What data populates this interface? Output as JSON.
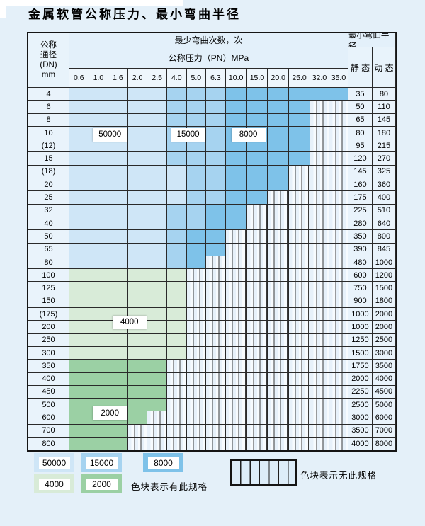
{
  "title": "金属软管公称压力、最小弯曲半径",
  "table": {
    "header": {
      "dn_lines": [
        "公称",
        "通径",
        "(DN)",
        "mm"
      ],
      "bend_times": "最少弯曲次数，次",
      "pressure": "公称压力（PN）MPa",
      "radius": "最小弯曲半径",
      "static": "静 态",
      "dynamic": "动 态",
      "pn_columns": [
        "0.6",
        "1.0",
        "1.6",
        "2.0",
        "2.5",
        "4.0",
        "5.0",
        "6.3",
        "10.0",
        "15.0",
        "20.0",
        "25.0",
        "32.0",
        "35.0"
      ]
    },
    "rows": [
      {
        "dn": "4",
        "max_pn": "35.0",
        "shade_medium_from": "4.0",
        "shade_dark_from": "10.0",
        "static": "35",
        "dynamic": "80"
      },
      {
        "dn": "6",
        "max_pn": "25.0",
        "shade_medium_from": "4.0",
        "shade_dark_from": "10.0",
        "static": "50",
        "dynamic": "110"
      },
      {
        "dn": "8",
        "max_pn": "25.0",
        "shade_medium_from": "4.0",
        "shade_dark_from": "10.0",
        "static": "65",
        "dynamic": "145"
      },
      {
        "dn": "10",
        "max_pn": "25.0",
        "shade_medium_from": "4.0",
        "shade_dark_from": "10.0",
        "static": "80",
        "dynamic": "180"
      },
      {
        "dn": "(12)",
        "max_pn": "25.0",
        "shade_medium_from": "4.0",
        "shade_dark_from": "10.0",
        "static": "95",
        "dynamic": "215"
      },
      {
        "dn": "15",
        "max_pn": "25.0",
        "shade_medium_from": "4.0",
        "shade_dark_from": "10.0",
        "static": "120",
        "dynamic": "270"
      },
      {
        "dn": "(18)",
        "max_pn": "20.0",
        "shade_medium_from": "5.0",
        "shade_dark_from": "10.0",
        "static": "145",
        "dynamic": "325"
      },
      {
        "dn": "20",
        "max_pn": "20.0",
        "shade_medium_from": "5.0",
        "shade_dark_from": "10.0",
        "static": "160",
        "dynamic": "360"
      },
      {
        "dn": "25",
        "max_pn": "15.0",
        "shade_medium_from": "5.0",
        "shade_dark_from": "10.0",
        "static": "175",
        "dynamic": "400"
      },
      {
        "dn": "32",
        "max_pn": "10.0",
        "shade_medium_from": "4.0",
        "shade_dark_from": "6.3",
        "static": "225",
        "dynamic": "510"
      },
      {
        "dn": "40",
        "max_pn": "10.0",
        "shade_medium_from": "4.0",
        "shade_dark_from": "6.3",
        "static": "280",
        "dynamic": "640"
      },
      {
        "dn": "50",
        "max_pn": "6.3",
        "shade_medium_from": "4.0",
        "shade_dark_from": "5.0",
        "static": "350",
        "dynamic": "800"
      },
      {
        "dn": "65",
        "max_pn": "6.3",
        "shade_medium_from": "4.0",
        "shade_dark_from": "5.0",
        "static": "390",
        "dynamic": "845"
      },
      {
        "dn": "80",
        "max_pn": "5.0",
        "shade_medium_from": "4.0",
        "shade_dark_from": "5.0",
        "static": "480",
        "dynamic": "1000"
      },
      {
        "dn": "100",
        "max_pn": "4.0",
        "green_category": "4000",
        "static": "600",
        "dynamic": "1200"
      },
      {
        "dn": "125",
        "max_pn": "4.0",
        "green_category": "4000",
        "static": "750",
        "dynamic": "1500"
      },
      {
        "dn": "150",
        "max_pn": "4.0",
        "green_category": "4000",
        "static": "900",
        "dynamic": "1800"
      },
      {
        "dn": "(175)",
        "max_pn": "4.0",
        "green_category": "4000",
        "static": "1000",
        "dynamic": "2000"
      },
      {
        "dn": "200",
        "max_pn": "4.0",
        "green_category": "4000",
        "static": "1000",
        "dynamic": "2000"
      },
      {
        "dn": "250",
        "max_pn": "4.0",
        "green_category": "4000",
        "static": "1250",
        "dynamic": "2500"
      },
      {
        "dn": "300",
        "max_pn": "4.0",
        "green_category": "4000",
        "static": "1500",
        "dynamic": "3000"
      },
      {
        "dn": "350",
        "max_pn": "2.5",
        "green_category": "2000",
        "static": "1750",
        "dynamic": "3500"
      },
      {
        "dn": "400",
        "max_pn": "2.5",
        "green_category": "2000",
        "static": "2000",
        "dynamic": "4000"
      },
      {
        "dn": "450",
        "max_pn": "2.5",
        "green_category": "2000",
        "static": "2250",
        "dynamic": "4500"
      },
      {
        "dn": "500",
        "max_pn": "2.5",
        "green_category": "2000",
        "static": "2500",
        "dynamic": "5000"
      },
      {
        "dn": "600",
        "max_pn": "2.0",
        "green_category": "2000",
        "static": "3000",
        "dynamic": "6000"
      },
      {
        "dn": "700",
        "max_pn": "1.6",
        "green_category": "2000",
        "static": "3500",
        "dynamic": "7000"
      },
      {
        "dn": "800",
        "max_pn": "1.6",
        "green_category": "2000",
        "static": "4000",
        "dynamic": "8000"
      }
    ],
    "region_labels": [
      {
        "text": "50000",
        "row": "10",
        "pn_boundary": "1.0",
        "anchor": "center"
      },
      {
        "text": "15000",
        "row": "10",
        "pn_boundary": "4.0",
        "anchor": "center"
      },
      {
        "text": "8000",
        "row": "10",
        "pn_boundary": "10.0",
        "anchor": "center"
      },
      {
        "text": "4000",
        "row": "(175)",
        "pn_boundary": "1.6",
        "anchor": "bottom"
      },
      {
        "text": "2000",
        "row": "500",
        "pn_boundary": "1.0",
        "anchor": "bottom"
      }
    ]
  },
  "legend": {
    "items": [
      {
        "value": "50000",
        "category": "cat_50000"
      },
      {
        "value": "15000",
        "category": "cat_15000"
      },
      {
        "value": "8000",
        "category": "cat_8000"
      },
      {
        "value": "4000",
        "category": "cat_4000"
      },
      {
        "value": "2000",
        "category": "cat_2000"
      }
    ],
    "has_spec_note": "色块表示有此规格",
    "no_spec_note": "色块表示无此规格"
  },
  "colors": {
    "cat_50000": "#cfe6f7",
    "cat_15000": "#a6d3f0",
    "cat_8000": "#7ec2e9",
    "cat_4000": "#d8ebd8",
    "cat_2000": "#9bd0a4",
    "hatch_bg": "#f3f9fd",
    "grid_line": "#2a2a2a",
    "page_bg": "#e4f0f9"
  }
}
